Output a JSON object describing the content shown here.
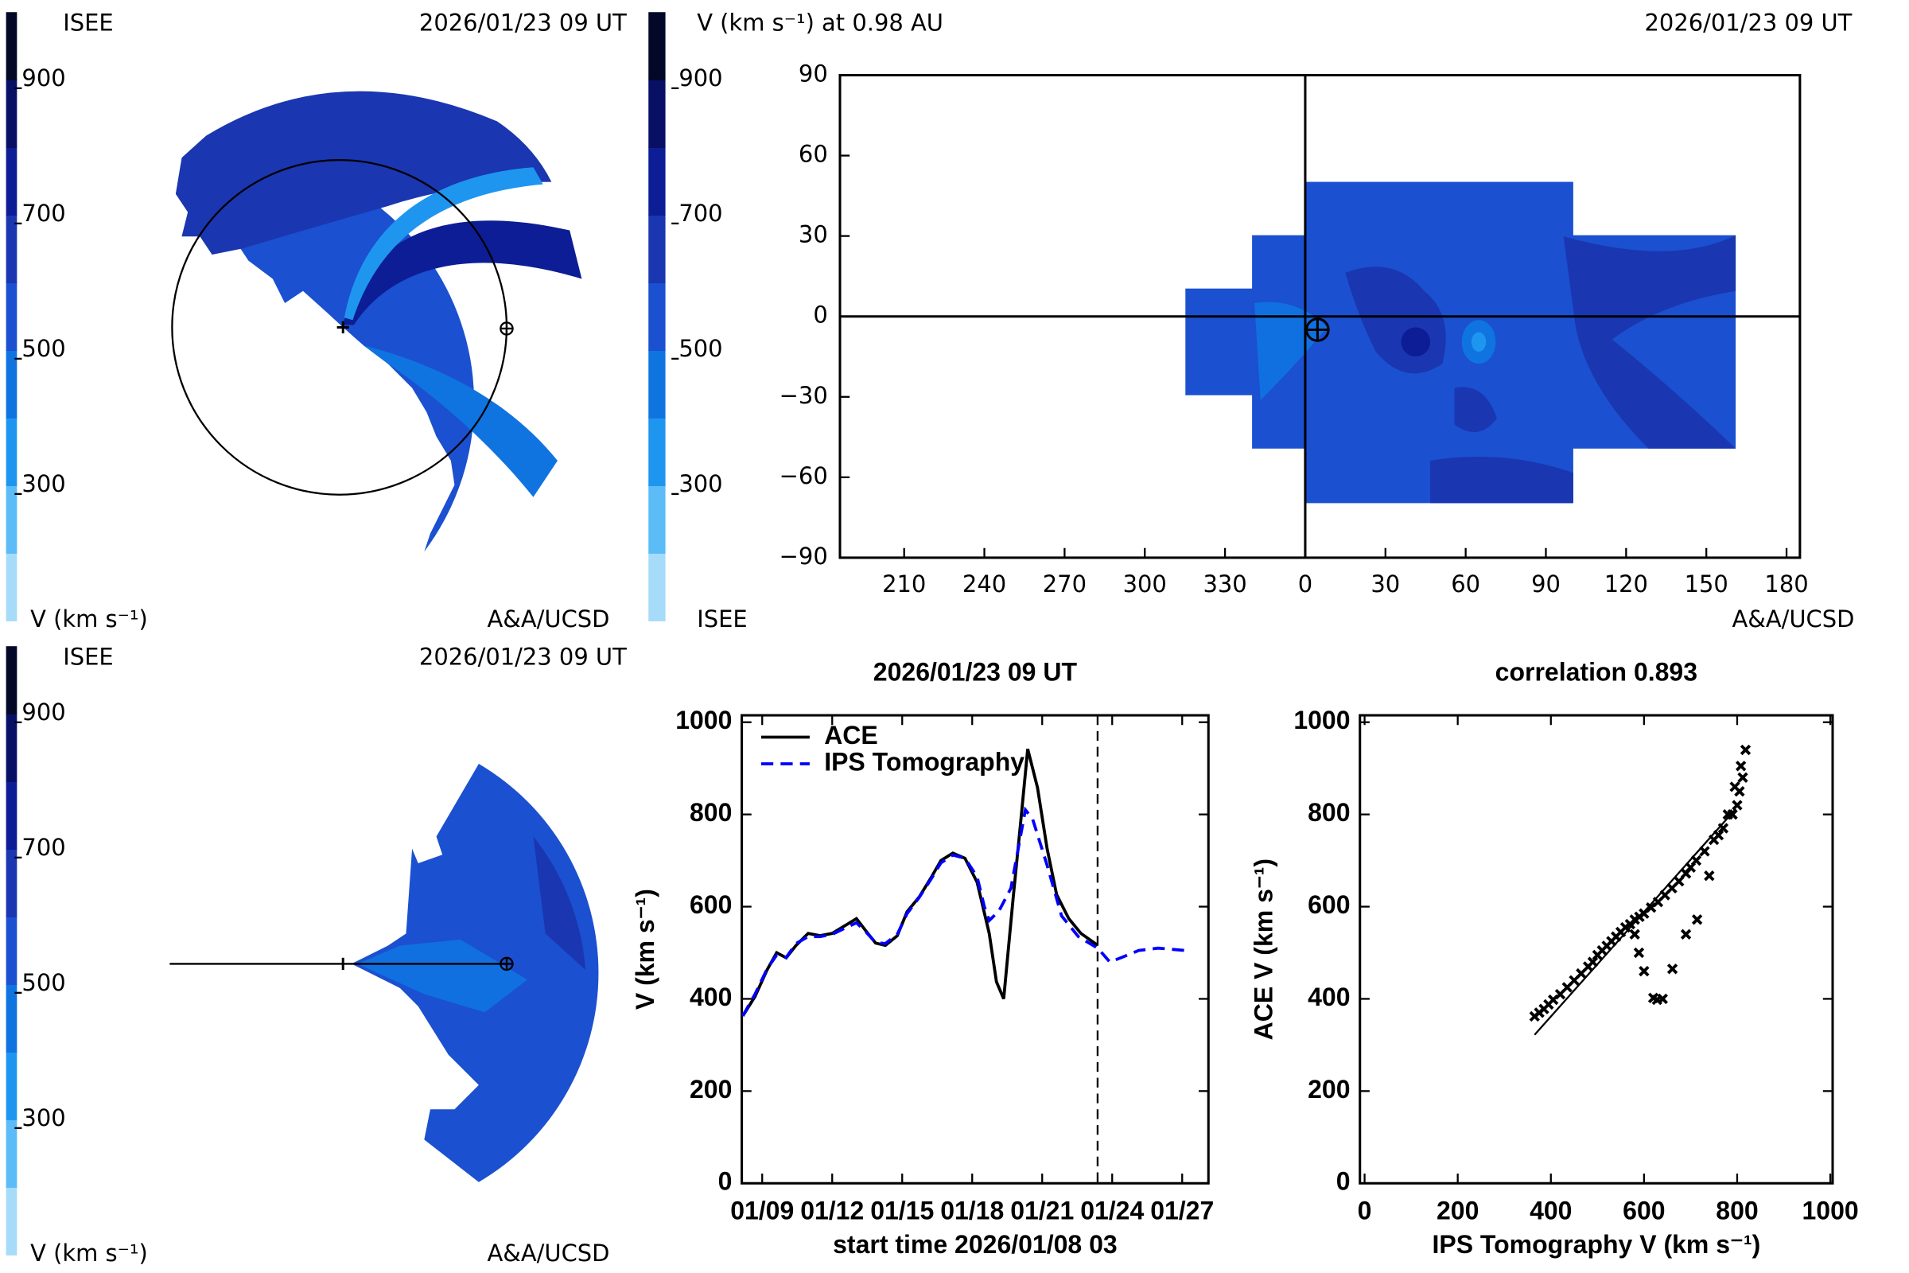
{
  "chart_data": [
    {
      "type": "polar-map",
      "label": "ISEE",
      "title": "2026/01/23 09 UT",
      "credit": "A&A/UCSD",
      "colorbar": {
        "label": "V (km s⁻¹)",
        "lim": [
          100,
          1000
        ],
        "ticks": [
          300,
          500,
          700,
          900
        ],
        "colors": [
          "#a6dcf9",
          "#5bbcf7",
          "#1e96f0",
          "#0f74e0",
          "#1b50d0",
          "#1a36b0",
          "#0d1d95",
          "#081066",
          "#040828"
        ]
      }
    },
    {
      "type": "map",
      "title": "V (km s⁻¹) at 0.98 AU",
      "date": "2026/01/23 09 UT",
      "label": "ISEE",
      "credit": "A&A/UCSD",
      "colorbar": {
        "lim": [
          100,
          1000
        ],
        "ticks": [
          300,
          500,
          700,
          900
        ],
        "colors": [
          "#a6dcf9",
          "#5bbcf7",
          "#1e96f0",
          "#0f74e0",
          "#1b50d0",
          "#1a36b0",
          "#0d1d95",
          "#081066",
          "#040828"
        ]
      },
      "xlim": [
        -174,
        185
      ],
      "xticks": [
        {
          "value": -150,
          "label": "210"
        },
        {
          "value": -120,
          "label": "240"
        },
        {
          "value": -90,
          "label": "270"
        },
        {
          "value": -60,
          "label": "300"
        },
        {
          "value": -30,
          "label": "330"
        },
        0,
        30,
        60,
        90,
        120,
        150,
        180
      ],
      "ylim": [
        -90,
        90
      ],
      "yticks": [
        {
          "value": -90,
          "label": "−90"
        },
        {
          "value": -60,
          "label": "−60"
        },
        {
          "value": -30,
          "label": "−30"
        },
        0,
        30,
        60,
        90
      ]
    },
    {
      "type": "polar-map",
      "label": "ISEE",
      "title": "2026/01/23 09 UT",
      "credit": "A&A/UCSD",
      "colorbar": {
        "label": "V (km s⁻¹)",
        "lim": [
          100,
          1000
        ],
        "ticks": [
          300,
          500,
          700,
          900
        ],
        "colors": [
          "#a6dcf9",
          "#5bbcf7",
          "#1e96f0",
          "#0f74e0",
          "#1b50d0",
          "#1a36b0",
          "#0d1d95",
          "#081066",
          "#040828"
        ]
      }
    },
    {
      "type": "line",
      "title": "2026/01/23 09 UT",
      "x_label": "start time 2026/01/08 03",
      "y_label": "V (km s⁻¹)",
      "xlim": [
        8.125,
        28.125
      ],
      "xticks": [
        {
          "value": 9,
          "label": "01/09"
        },
        {
          "value": 12,
          "label": "01/12"
        },
        {
          "value": 15,
          "label": "01/15"
        },
        {
          "value": 18,
          "label": "01/18"
        },
        {
          "value": 21,
          "label": "01/21"
        },
        {
          "value": 24,
          "label": "01/24"
        },
        {
          "value": 27,
          "label": "01/27"
        }
      ],
      "ylim": [
        0,
        1015
      ],
      "yticks": [
        0,
        200,
        400,
        600,
        800,
        1000
      ],
      "current_time": 23.375,
      "series": [
        {
          "name": "ACE",
          "color": "#000000",
          "dash": false,
          "x": [
            8.17,
            8.69,
            9.21,
            9.62,
            10.03,
            10.45,
            10.97,
            11.48,
            12.0,
            12.62,
            13.04,
            13.45,
            13.86,
            14.28,
            14.79,
            15.21,
            15.73,
            16.24,
            16.66,
            17.17,
            17.69,
            18.21,
            18.73,
            19.04,
            19.35,
            19.76,
            20.07,
            20.38,
            20.8,
            21.21,
            21.62,
            22.14,
            22.66,
            23.38
          ],
          "values": [
            363,
            405,
            463,
            500,
            489,
            516,
            542,
            537,
            542,
            561,
            574,
            547,
            521,
            516,
            537,
            589,
            621,
            663,
            700,
            716,
            705,
            653,
            542,
            437,
            400,
            621,
            779,
            942,
            858,
            726,
            626,
            574,
            542,
            516
          ]
        },
        {
          "name": "IPS Tomography",
          "color": "#0000ff",
          "dash": true,
          "x": [
            8.17,
            8.69,
            9.21,
            9.62,
            10.03,
            10.45,
            10.97,
            11.48,
            12.0,
            12.62,
            13.04,
            13.45,
            13.86,
            14.28,
            14.79,
            15.21,
            15.73,
            16.24,
            16.66,
            17.17,
            17.69,
            18.21,
            18.52,
            18.73,
            19.14,
            19.66,
            20.28,
            20.59,
            21.21,
            21.83,
            22.55,
            23.38,
            23.9,
            24.42,
            25.14,
            25.97,
            27.11
          ],
          "values": [
            363,
            410,
            465,
            495,
            490,
            520,
            535,
            535,
            540,
            555,
            565,
            545,
            522,
            520,
            540,
            585,
            620,
            660,
            695,
            712,
            705,
            665,
            600,
            570,
            590,
            640,
            810,
            790,
            690,
            580,
            535,
            510,
            480,
            490,
            505,
            510,
            505
          ]
        }
      ]
    },
    {
      "type": "scatter",
      "title": "correlation 0.893",
      "x_label": "IPS Tomography V (km s⁻¹)",
      "y_label": "ACE V (km s⁻¹)",
      "xlim": [
        -10,
        1005
      ],
      "xticks": [
        0,
        200,
        400,
        600,
        800,
        1000
      ],
      "ylim": [
        0,
        1015
      ],
      "yticks": [
        0,
        200,
        400,
        600,
        800,
        1000
      ],
      "x": [
        365,
        375,
        385,
        395,
        405,
        420,
        435,
        450,
        465,
        480,
        490,
        500,
        510,
        520,
        530,
        540,
        550,
        560,
        570,
        580,
        590,
        600,
        615,
        630,
        645,
        660,
        675,
        690,
        700,
        712,
        730,
        750,
        770,
        790,
        800,
        805,
        812,
        818,
        808,
        795,
        780,
        760,
        740,
        714,
        690,
        661,
        640,
        628,
        620,
        600,
        589,
        580
      ],
      "values": [
        362,
        370,
        378,
        388,
        398,
        410,
        425,
        440,
        455,
        470,
        480,
        495,
        505,
        515,
        525,
        535,
        545,
        555,
        562,
        572,
        578,
        585,
        598,
        610,
        625,
        640,
        655,
        672,
        685,
        700,
        720,
        745,
        770,
        800,
        820,
        850,
        880,
        940,
        905,
        860,
        800,
        755,
        667,
        572,
        540,
        465,
        400,
        398,
        402,
        460,
        500,
        540
      ],
      "fit_x": [
        365,
        797
      ],
      "fit_y": [
        322,
        812
      ]
    }
  ]
}
